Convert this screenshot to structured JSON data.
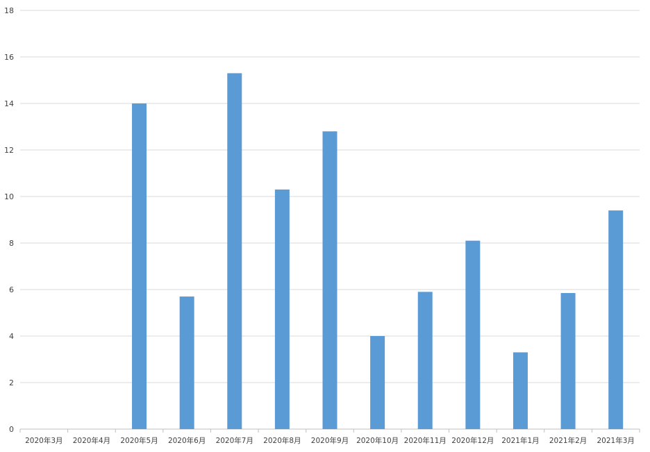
{
  "chart_data": {
    "type": "bar",
    "title": "",
    "xlabel": "",
    "ylabel": "",
    "categories": [
      "2020年3月",
      "2020年4月",
      "2020年5月",
      "2020年6月",
      "2020年7月",
      "2020年8月",
      "2020年9月",
      "2020年10月",
      "2020年11月",
      "2020年12月",
      "2021年1月",
      "2021年2月",
      "2021年3月"
    ],
    "values": [
      0,
      0,
      14.0,
      5.7,
      15.3,
      10.3,
      12.8,
      4.0,
      5.9,
      8.1,
      3.3,
      5.85,
      9.4
    ],
    "ylim": [
      0,
      18
    ],
    "yticks": [
      "0",
      "2",
      "4",
      "6",
      "8",
      "10",
      "12",
      "14",
      "16",
      "18"
    ],
    "grid": true,
    "legend": "none",
    "colors": {
      "bar": "#5b9bd5",
      "grid": "#d9d9d9",
      "text": "#404040"
    }
  }
}
